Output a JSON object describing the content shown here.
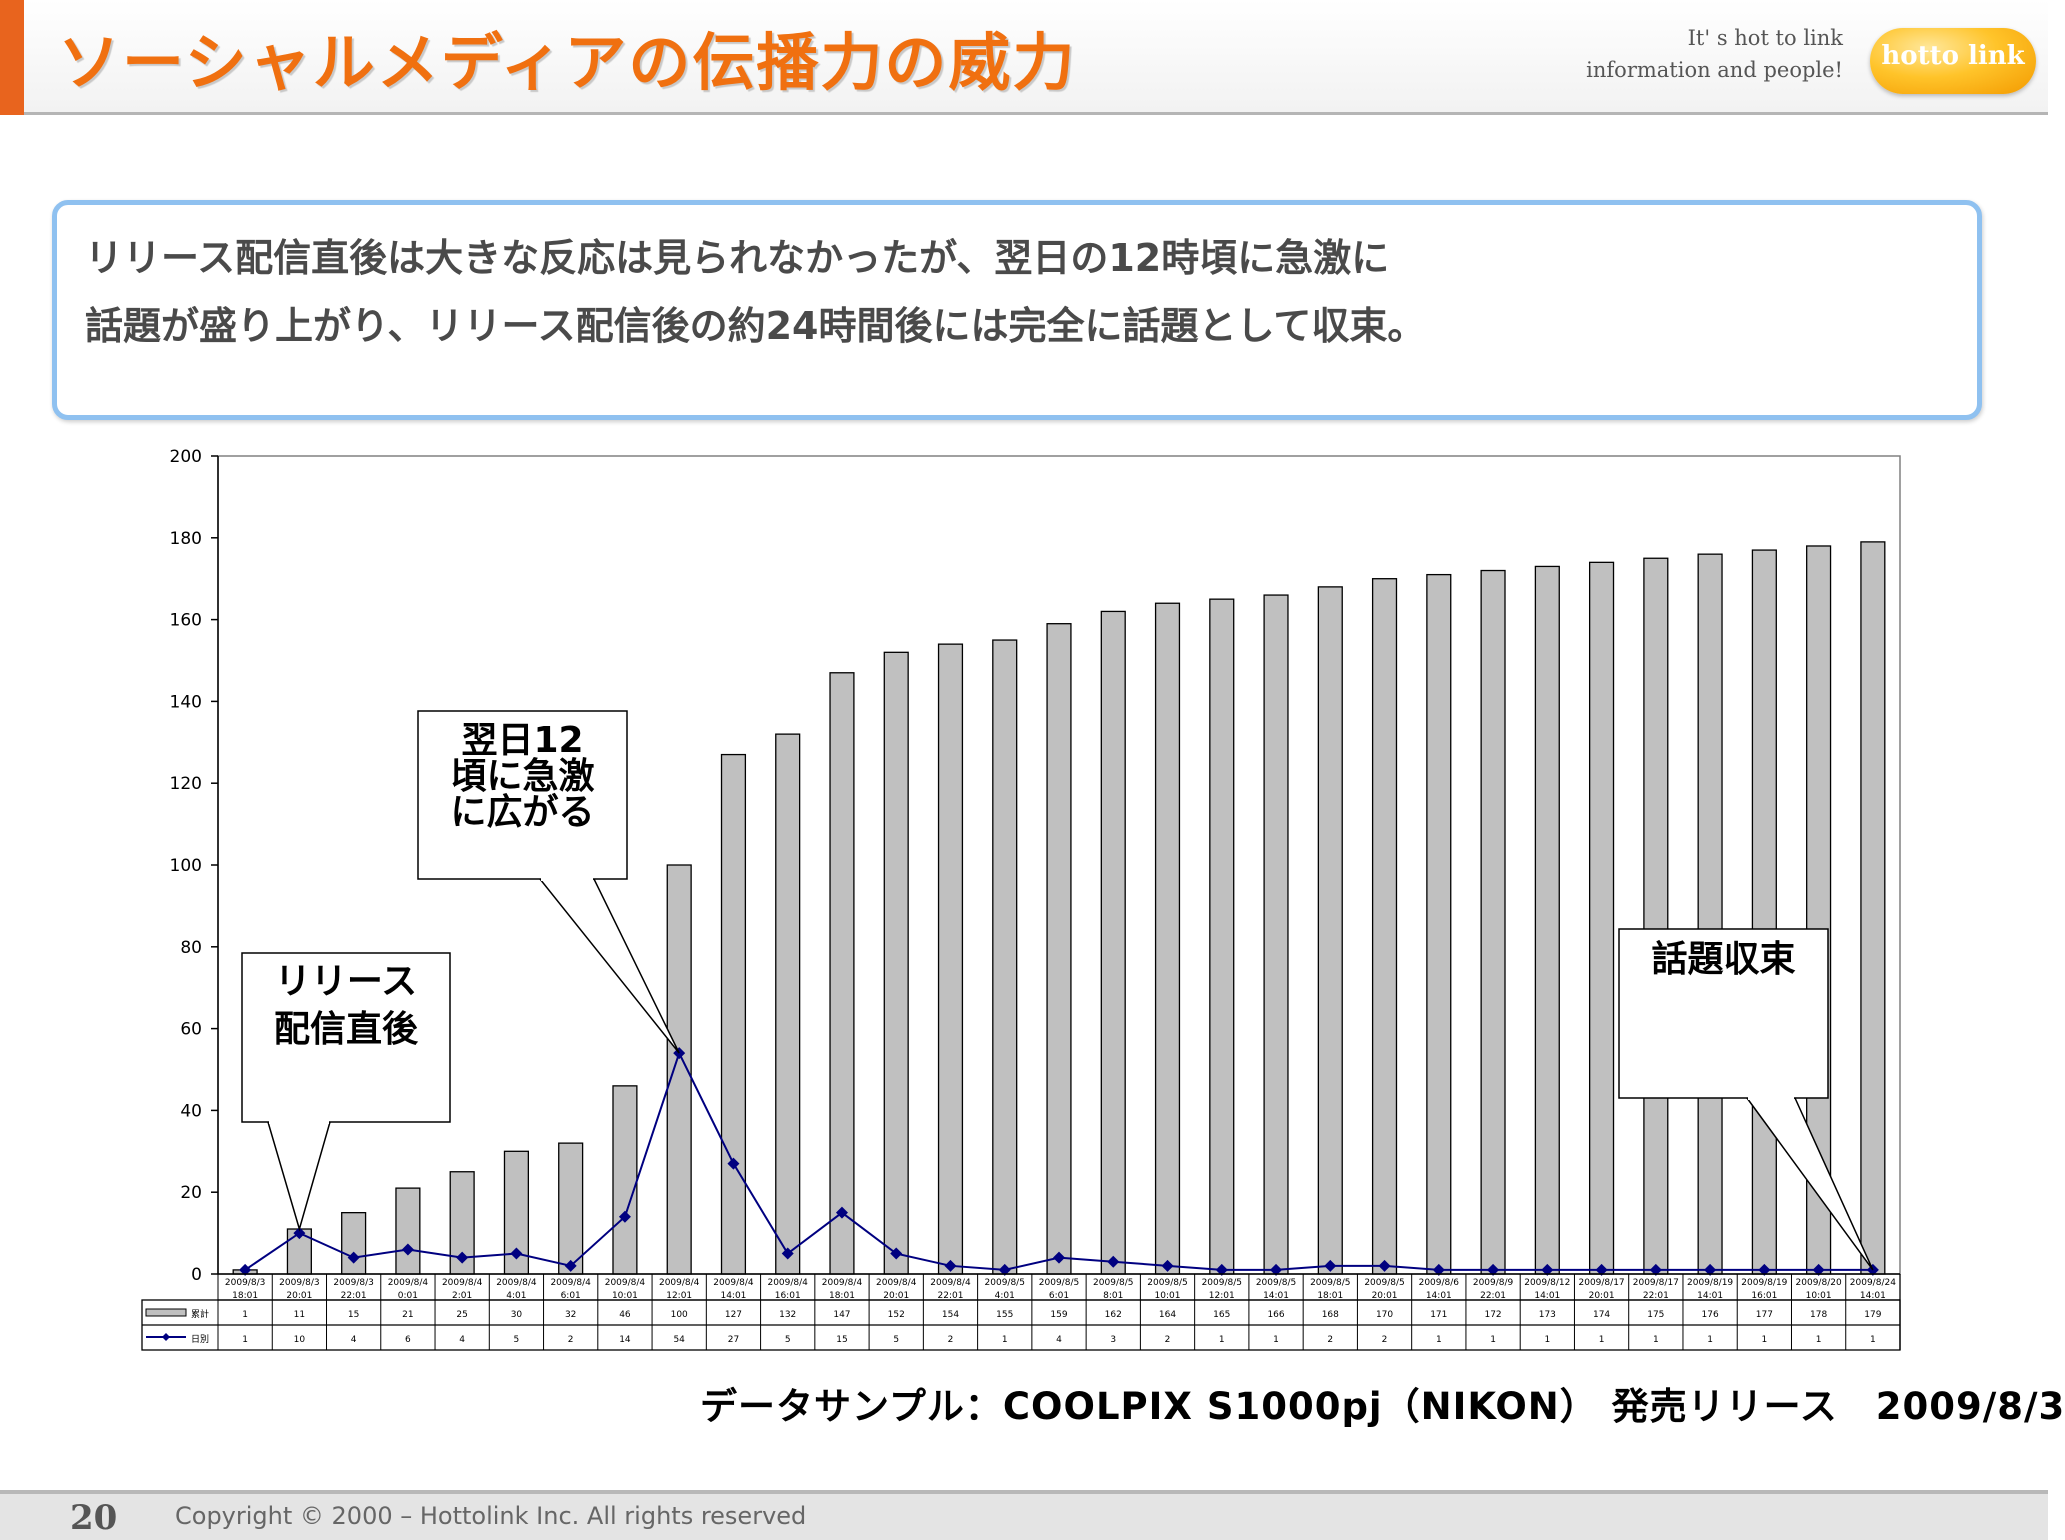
{
  "slide_title": "ソーシャルメディアの伝播力の威力",
  "tagline": [
    "It' s hot to link",
    "information and people!"
  ],
  "logo_text": "hotto link",
  "summary_lines": [
    "リリース配信直後は大きな反応は見られなかったが、翌日の12時頃に急激に",
    "話題が盛り上がり、リリース配信後の約24時間後には完全に話題として収束。"
  ],
  "callouts": {
    "release": [
      "リリース",
      "配信直後"
    ],
    "peak": [
      "翌日12",
      "頃に急激",
      "に広がる"
    ],
    "end": [
      "話題収束"
    ]
  },
  "data_source": "データサンプル：COOLPIX S1000pj（NIKON） 発売リリース　2009/8/3",
  "footer": {
    "page_number": "20",
    "copyright": "Copyright © 2000 – Hottolink Inc. All rights reserved"
  },
  "colors": {
    "title": "#f07010",
    "accent_bar": "#e8641e",
    "bar_fill": "#c0c0c0",
    "line": "#000080",
    "summary_border": "#8fc1f0"
  },
  "chart_data": {
    "type": "bar",
    "title": "",
    "xlabel": "",
    "ylabel": "",
    "ylim": [
      0,
      200
    ],
    "yticks": [
      0,
      20,
      40,
      60,
      80,
      100,
      120,
      140,
      160,
      180,
      200
    ],
    "grid": false,
    "categories": [
      [
        "2009/8/3",
        "18:01"
      ],
      [
        "2009/8/3",
        "20:01"
      ],
      [
        "2009/8/3",
        "22:01"
      ],
      [
        "2009/8/4",
        "0:01"
      ],
      [
        "2009/8/4",
        "2:01"
      ],
      [
        "2009/8/4",
        "4:01"
      ],
      [
        "2009/8/4",
        "6:01"
      ],
      [
        "2009/8/4",
        "10:01"
      ],
      [
        "2009/8/4",
        "12:01"
      ],
      [
        "2009/8/4",
        "14:01"
      ],
      [
        "2009/8/4",
        "16:01"
      ],
      [
        "2009/8/4",
        "18:01"
      ],
      [
        "2009/8/4",
        "20:01"
      ],
      [
        "2009/8/4",
        "22:01"
      ],
      [
        "2009/8/5",
        "4:01"
      ],
      [
        "2009/8/5",
        "6:01"
      ],
      [
        "2009/8/5",
        "8:01"
      ],
      [
        "2009/8/5",
        "10:01"
      ],
      [
        "2009/8/5",
        "12:01"
      ],
      [
        "2009/8/5",
        "14:01"
      ],
      [
        "2009/8/5",
        "18:01"
      ],
      [
        "2009/8/5",
        "20:01"
      ],
      [
        "2009/8/6",
        "14:01"
      ],
      [
        "2009/8/9",
        "22:01"
      ],
      [
        "2009/8/12",
        "14:01"
      ],
      [
        "2009/8/17",
        "20:01"
      ],
      [
        "2009/8/17",
        "22:01"
      ],
      [
        "2009/8/19",
        "14:01"
      ],
      [
        "2009/8/19",
        "16:01"
      ],
      [
        "2009/8/20",
        "10:01"
      ],
      [
        "2009/8/24",
        "14:01"
      ]
    ],
    "series": [
      {
        "name": "累計",
        "type": "bar",
        "values": [
          1,
          11,
          15,
          21,
          25,
          30,
          32,
          46,
          100,
          127,
          132,
          147,
          152,
          154,
          155,
          159,
          162,
          164,
          165,
          166,
          168,
          170,
          171,
          172,
          173,
          174,
          175,
          176,
          177,
          178,
          179
        ]
      },
      {
        "name": "日別",
        "type": "line",
        "values": [
          1,
          10,
          4,
          6,
          4,
          5,
          2,
          14,
          54,
          27,
          5,
          15,
          5,
          2,
          1,
          4,
          3,
          2,
          1,
          1,
          2,
          2,
          1,
          1,
          1,
          1,
          1,
          1,
          1,
          1,
          1
        ]
      }
    ],
    "legend": "data table (left column)"
  }
}
